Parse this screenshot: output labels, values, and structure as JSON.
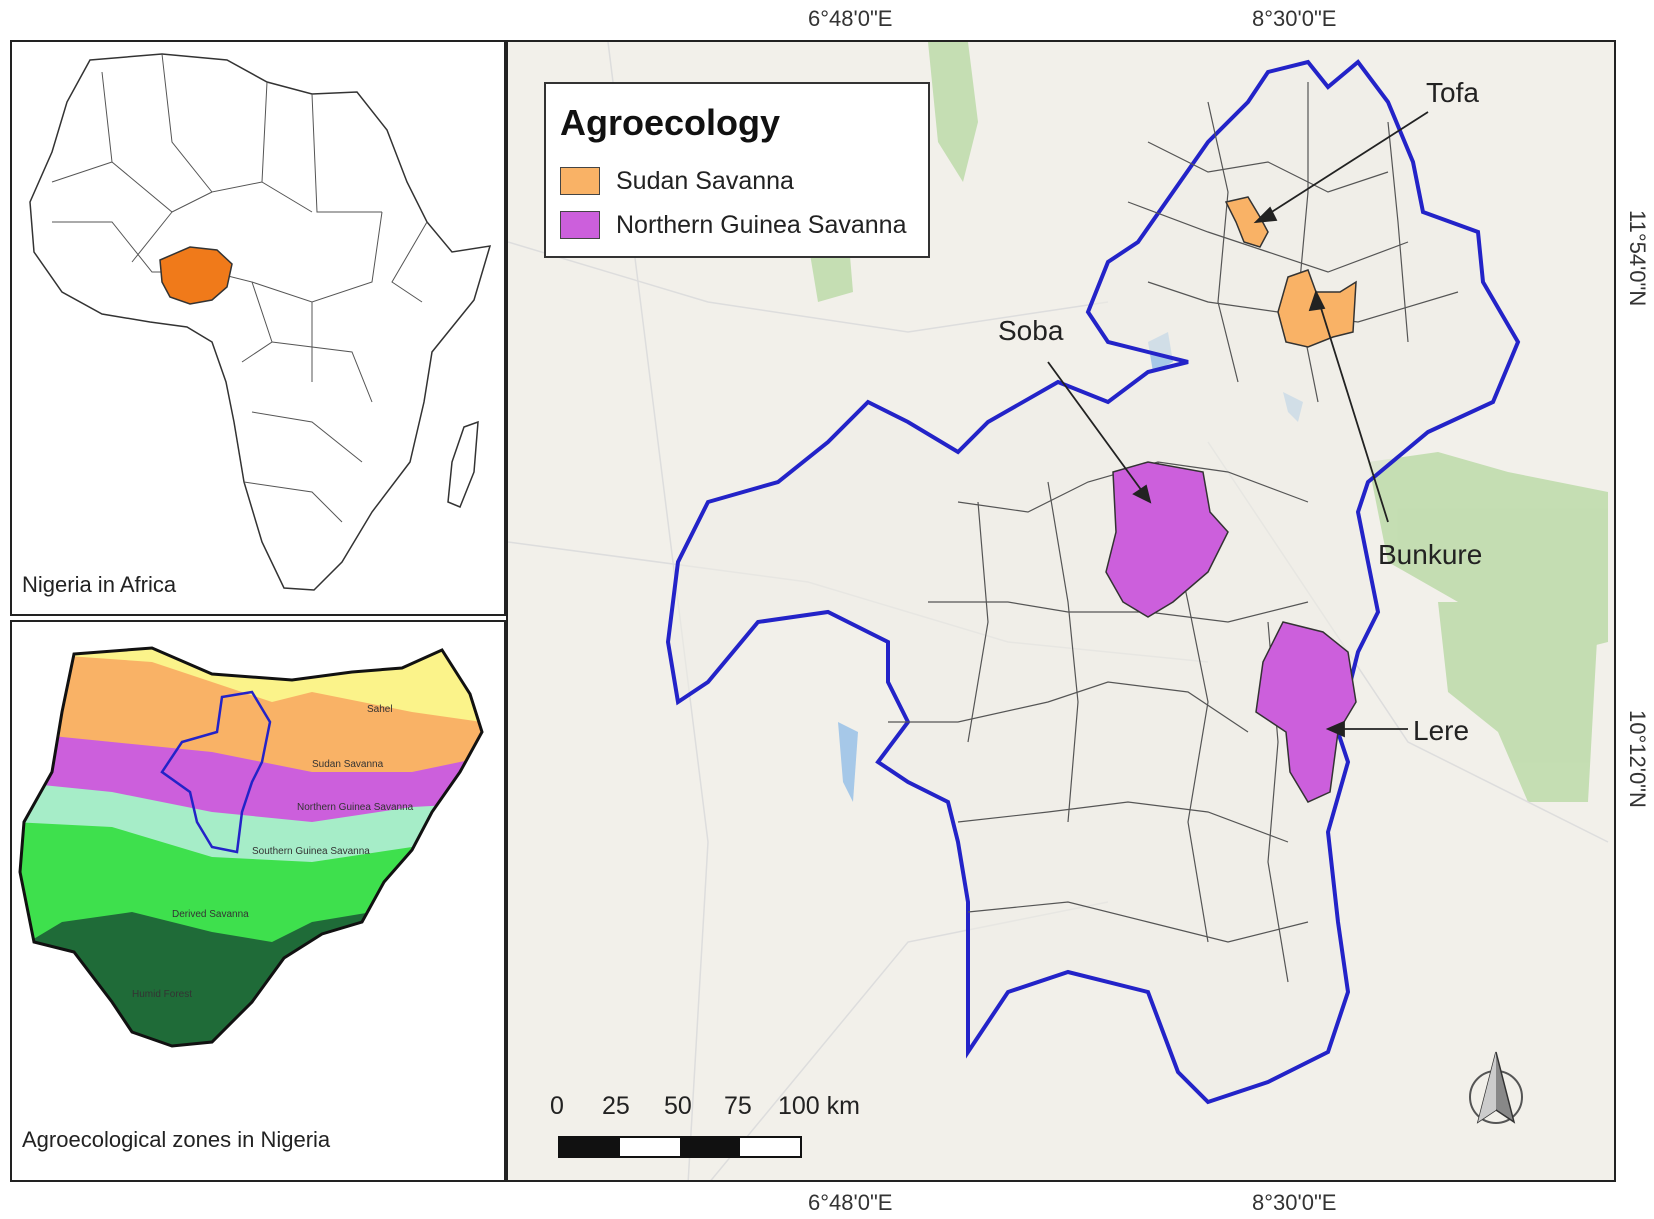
{
  "inset_africa": {
    "caption": "Nigeria in Africa"
  },
  "inset_nigeria": {
    "caption": "Agroecological zones in Nigeria",
    "zones": [
      {
        "label": "Sahel",
        "color": "#fbf38a"
      },
      {
        "label": "Sudan Savanna",
        "color": "#f9b266"
      },
      {
        "label": "Northern Guinea Savanna",
        "color": "#cc5fdc"
      },
      {
        "label": "Southern Guinea Savanna",
        "color": "#a6edc8"
      },
      {
        "label": "Derived Savanna",
        "color": "#3ee04d"
      },
      {
        "label": "Humid Forest",
        "color": "#1f6b38"
      }
    ]
  },
  "main_map": {
    "legend": {
      "title": "Agroecology",
      "items": [
        {
          "label": "Sudan Savanna",
          "color": "#f9b266"
        },
        {
          "label": "Northern Guinea Savanna",
          "color": "#cc5fdc"
        }
      ]
    },
    "sites": [
      {
        "name": "Tofa",
        "zone": "Sudan Savanna"
      },
      {
        "name": "Bunkure",
        "zone": "Sudan Savanna"
      },
      {
        "name": "Soba",
        "zone": "Northern Guinea Savanna"
      },
      {
        "name": "Lere",
        "zone": "Northern Guinea Savanna"
      }
    ],
    "coords": {
      "top_left": "6°48'0\"E",
      "top_right": "8°30'0\"E",
      "bottom_left": "6°48'0\"E",
      "bottom_right": "8°30'0\"E",
      "right_upper": "11°54'0\"N",
      "right_lower": "10°12'0\"N"
    },
    "scale_bar": {
      "ticks": [
        "0",
        "25",
        "50",
        "75",
        "100 km"
      ]
    },
    "north_arrow": "north-arrow-icon",
    "highlight_color": "#f07a1a",
    "boundary_color": "#2323c8"
  }
}
